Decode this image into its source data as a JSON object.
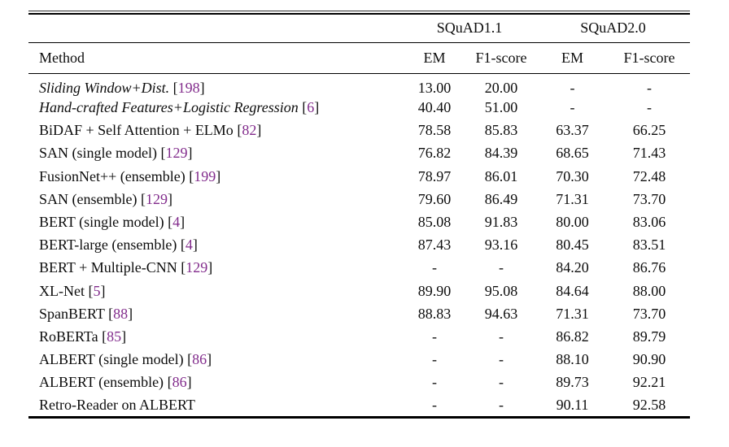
{
  "colors": {
    "citation_purple": "#822c8c",
    "rule_black": "#000000",
    "text": "#0d0d0d",
    "background": "#ffffff"
  },
  "table": {
    "group_headers": [
      {
        "label": "SQuAD1.1"
      },
      {
        "label": "SQuAD2.0"
      }
    ],
    "column_headers": {
      "method": "Method",
      "squad11_em": "EM",
      "squad11_f1": "F1-score",
      "squad20_em": "EM",
      "squad20_f1": "F1-score"
    },
    "rows": [
      {
        "method": "Sliding Window+Dist.",
        "citation": "198",
        "italic": true,
        "squad11_em": "13.00",
        "squad11_f1": "20.00",
        "squad20_em": "-",
        "squad20_f1": "-"
      },
      {
        "method": "Hand-crafted Features+Logistic Regression",
        "citation": "6",
        "italic": true,
        "squad11_em": "40.40",
        "squad11_f1": "51.00",
        "squad20_em": "-",
        "squad20_f1": "-"
      },
      {
        "method": "BiDAF + Self Attention + ELMo",
        "citation": "82",
        "italic": false,
        "squad11_em": "78.58",
        "squad11_f1": "85.83",
        "squad20_em": "63.37",
        "squad20_f1": "66.25"
      },
      {
        "method": "SAN (single model)",
        "citation": "129",
        "italic": false,
        "squad11_em": "76.82",
        "squad11_f1": "84.39",
        "squad20_em": "68.65",
        "squad20_f1": "71.43"
      },
      {
        "method": "FusionNet++ (ensemble)",
        "citation": "199",
        "italic": false,
        "squad11_em": "78.97",
        "squad11_f1": "86.01",
        "squad20_em": "70.30",
        "squad20_f1": "72.48"
      },
      {
        "method": "SAN (ensemble)",
        "citation": "129",
        "italic": false,
        "squad11_em": "79.60",
        "squad11_f1": "86.49",
        "squad20_em": "71.31",
        "squad20_f1": "73.70"
      },
      {
        "method": "BERT (single model)",
        "citation": "4",
        "italic": false,
        "squad11_em": "85.08",
        "squad11_f1": "91.83",
        "squad20_em": "80.00",
        "squad20_f1": "83.06"
      },
      {
        "method": "BERT-large (ensemble)",
        "citation": "4",
        "italic": false,
        "squad11_em": "87.43",
        "squad11_f1": "93.16",
        "squad20_em": "80.45",
        "squad20_f1": "83.51"
      },
      {
        "method": "BERT + Multiple-CNN",
        "citation": "129",
        "italic": false,
        "squad11_em": "-",
        "squad11_f1": "-",
        "squad20_em": "84.20",
        "squad20_f1": "86.76"
      },
      {
        "method": "XL-Net",
        "citation": "5",
        "italic": false,
        "squad11_em": "89.90",
        "squad11_f1": "95.08",
        "squad20_em": "84.64",
        "squad20_f1": "88.00"
      },
      {
        "method": "SpanBERT",
        "citation": "88",
        "italic": false,
        "squad11_em": "88.83",
        "squad11_f1": "94.63",
        "squad20_em": "71.31",
        "squad20_f1": "73.70"
      },
      {
        "method": "RoBERTa",
        "citation": "85",
        "italic": false,
        "squad11_em": "-",
        "squad11_f1": "-",
        "squad20_em": "86.82",
        "squad20_f1": "89.79"
      },
      {
        "method": "ALBERT (single model)",
        "citation": "86",
        "italic": false,
        "squad11_em": "-",
        "squad11_f1": "-",
        "squad20_em": "88.10",
        "squad20_f1": "90.90"
      },
      {
        "method": "ALBERT (ensemble)",
        "citation": "86",
        "italic": false,
        "squad11_em": "-",
        "squad11_f1": "-",
        "squad20_em": "89.73",
        "squad20_f1": "92.21"
      },
      {
        "method": "Retro-Reader on ALBERT",
        "citation": null,
        "italic": false,
        "squad11_em": "-",
        "squad11_f1": "-",
        "squad20_em": "90.11",
        "squad20_f1": "92.58"
      }
    ]
  }
}
